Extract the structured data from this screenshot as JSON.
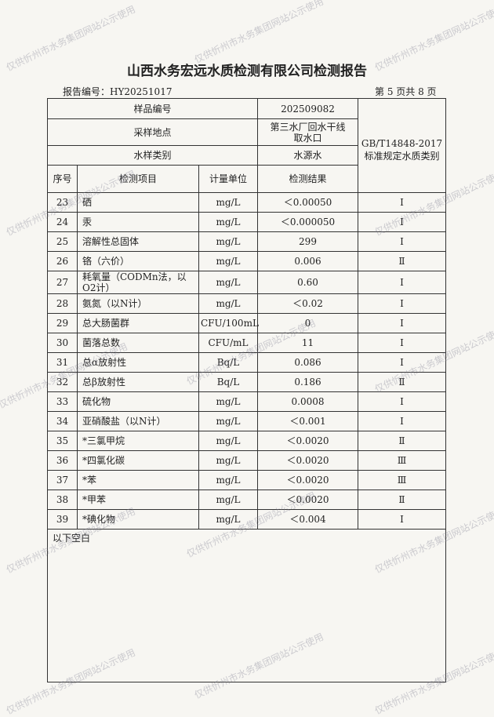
{
  "title": "山西水务宏远水质检测有限公司检测报告",
  "report_no": "报告编号：HY20251017",
  "page_info": "第 5 页共 8 页",
  "sample_info": {
    "sample_no_label": "样品编号",
    "sample_no": "202509082",
    "site_label": "采样地点",
    "site": "第三水厂回水干线取水口",
    "type_label": "水样类别",
    "type": "水源水",
    "standard": "GB/T14848-2017 标准规定水质类别"
  },
  "columns": [
    "序号",
    "检测项目",
    "计量单位",
    "检测结果"
  ],
  "rows": [
    [
      23,
      "硒",
      "mg/L",
      "＜0.00050",
      "Ⅰ"
    ],
    [
      24,
      "汞",
      "mg/L",
      "＜0.000050",
      "Ⅰ"
    ],
    [
      25,
      "溶解性总固体",
      "mg/L",
      "299",
      "Ⅰ"
    ],
    [
      26,
      "铬（六价）",
      "mg/L",
      "0.006",
      "Ⅱ"
    ],
    [
      27,
      "耗氧量（CODMn法，以O2计）",
      "mg/L",
      "0.60",
      "Ⅰ"
    ],
    [
      28,
      "氨氮（以N计）",
      "mg/L",
      "＜0.02",
      "Ⅰ"
    ],
    [
      29,
      "总大肠菌群",
      "CFU/100mL",
      "0",
      "Ⅰ"
    ],
    [
      30,
      "菌落总数",
      "CFU/mL",
      "11",
      "Ⅰ"
    ],
    [
      31,
      "总α放射性",
      "Bq/L",
      "0.086",
      "Ⅰ"
    ],
    [
      32,
      "总β放射性",
      "Bq/L",
      "0.186",
      "Ⅱ"
    ],
    [
      33,
      "硫化物",
      "mg/L",
      "0.0008",
      "Ⅰ"
    ],
    [
      34,
      "亚硝酸盐（以N计）",
      "mg/L",
      "＜0.001",
      "Ⅰ"
    ],
    [
      35,
      "*三氯甲烷",
      "mg/L",
      "＜0.0020",
      "Ⅱ"
    ],
    [
      36,
      "*四氯化碳",
      "mg/L",
      "＜0.0020",
      "Ⅲ"
    ],
    [
      37,
      "*苯",
      "mg/L",
      "＜0.0020",
      "Ⅲ"
    ],
    [
      38,
      "*甲苯",
      "mg/L",
      "＜0.0020",
      "Ⅱ"
    ],
    [
      39,
      "*碘化物",
      "mg/L",
      "＜0.004",
      "Ⅰ"
    ]
  ],
  "footer": "以下空白",
  "watermark": "仅供忻州市水务集团网站公示使用"
}
